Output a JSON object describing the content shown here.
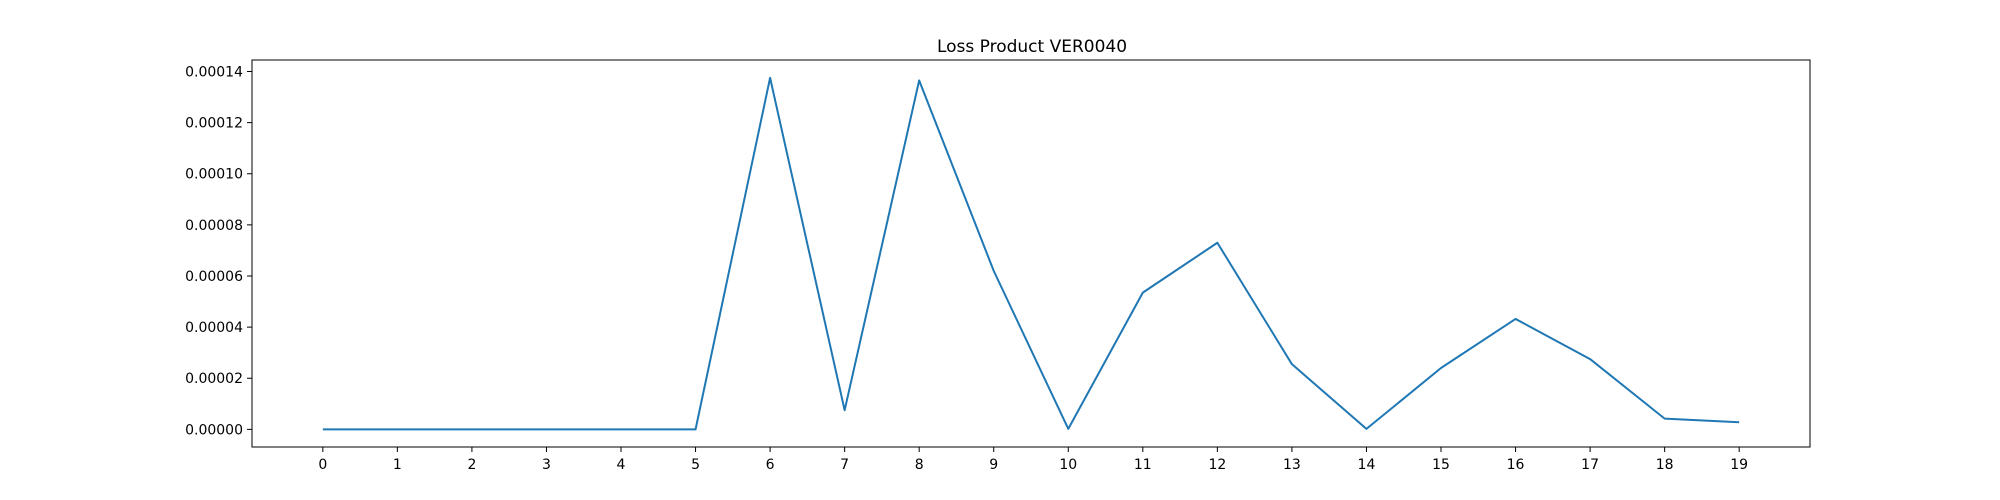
{
  "chart_data": {
    "type": "line",
    "title": "Loss Product VER0040",
    "xlabel": "",
    "ylabel": "",
    "x": [
      0,
      1,
      2,
      3,
      4,
      5,
      6,
      7,
      8,
      9,
      10,
      11,
      12,
      13,
      14,
      15,
      16,
      17,
      18,
      19
    ],
    "xlim": [
      -0.95,
      19.95
    ],
    "ylim": [
      -6.9e-06,
      0.0001445
    ],
    "y_ticks": [
      0.0,
      2e-05,
      4e-05,
      6e-05,
      8e-05,
      0.0001,
      0.00012,
      0.00014
    ],
    "y_tick_labels": [
      "0.00000",
      "0.00002",
      "0.00004",
      "0.00006",
      "0.00008",
      "0.00010",
      "0.00012",
      "0.00014"
    ],
    "x_tick_labels": [
      "0",
      "1",
      "2",
      "3",
      "4",
      "5",
      "6",
      "7",
      "8",
      "9",
      "10",
      "11",
      "12",
      "13",
      "14",
      "15",
      "16",
      "17",
      "18",
      "19"
    ],
    "grid": false,
    "series": [
      {
        "color": "#1f77b4",
        "values": [
          0,
          0,
          0,
          0,
          0,
          0,
          0.0001375,
          7.5e-06,
          0.0001365,
          6.2e-05,
          2e-07,
          5.35e-05,
          7.3e-05,
          2.55e-05,
          2e-07,
          2.4e-05,
          4.32e-05,
          2.75e-05,
          4.2e-06,
          2.8e-06
        ]
      }
    ]
  }
}
